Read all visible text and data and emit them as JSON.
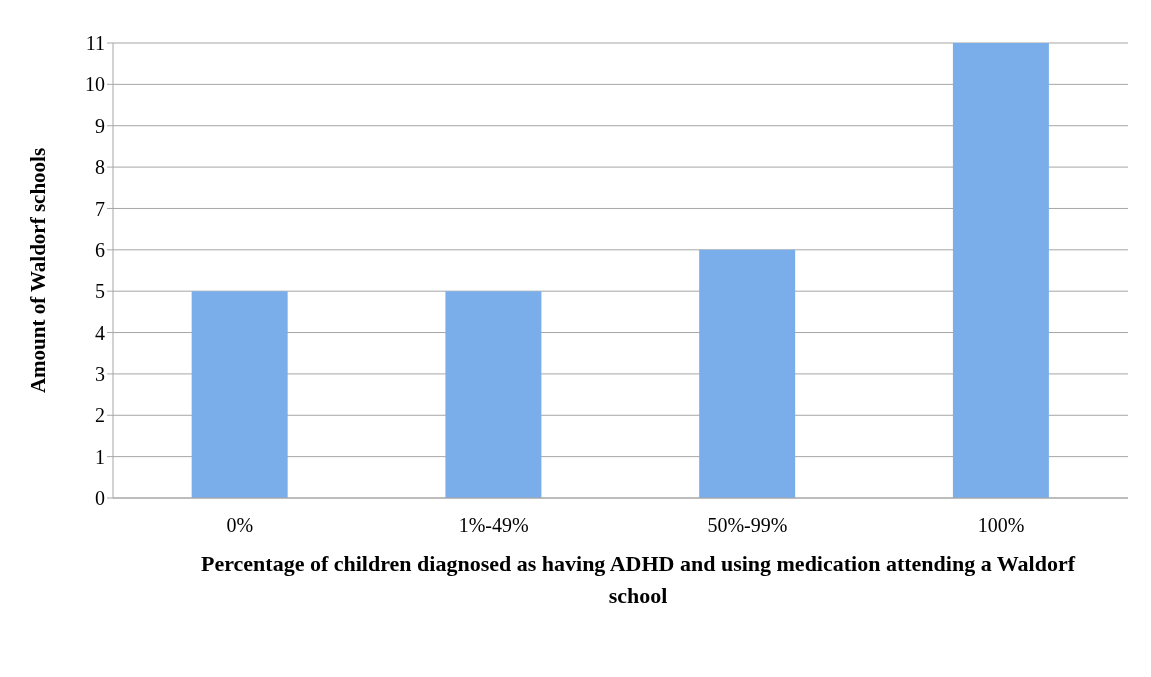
{
  "chart_data": {
    "type": "bar",
    "xlabel": "Percentage of children diagnosed as having ADHD and using medication attending a Waldorf school",
    "ylabel": "Amount of Waldorf schools",
    "categories": [
      "0%",
      "1%-49%",
      "50%-99%",
      "100%"
    ],
    "values": [
      5,
      5,
      6,
      11
    ],
    "color": "#7aaeea",
    "ylim": [
      0,
      11
    ],
    "yticks": [
      0,
      1,
      2,
      3,
      4,
      5,
      6,
      7,
      8,
      9,
      10,
      11
    ],
    "grid": "y",
    "legend": false
  }
}
